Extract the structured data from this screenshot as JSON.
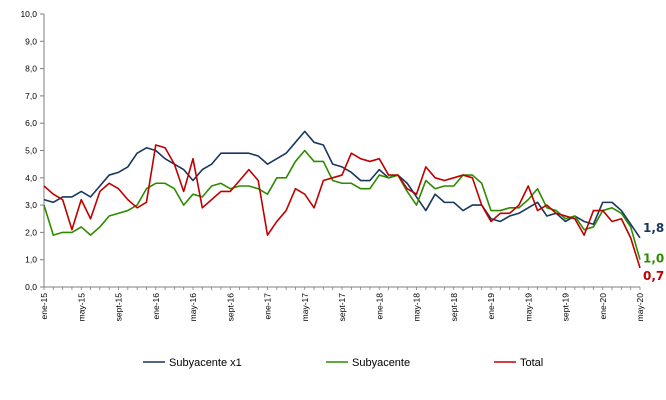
{
  "chart_data": {
    "type": "line",
    "title": "",
    "xlabel": "",
    "ylabel": "",
    "ylim": [
      0,
      10
    ],
    "y_ticks": [
      "0,0",
      "1,0",
      "2,0",
      "3,0",
      "4,0",
      "5,0",
      "6,0",
      "7,0",
      "8,0",
      "9,0",
      "10,0"
    ],
    "grid": false,
    "legend_position": "bottom",
    "x": [
      "ene-15",
      "feb-15",
      "mar-15",
      "abr-15",
      "may-15",
      "jun-15",
      "jul-15",
      "ago-15",
      "sept-15",
      "oct-15",
      "nov-15",
      "dic-15",
      "ene-16",
      "feb-16",
      "mar-16",
      "abr-16",
      "may-16",
      "jun-16",
      "jul-16",
      "ago-16",
      "sept-16",
      "oct-16",
      "nov-16",
      "dic-16",
      "ene-17",
      "feb-17",
      "mar-17",
      "abr-17",
      "may-17",
      "jun-17",
      "jul-17",
      "ago-17",
      "sept-17",
      "oct-17",
      "nov-17",
      "dic-17",
      "ene-18",
      "feb-18",
      "mar-18",
      "abr-18",
      "may-18",
      "jun-18",
      "jul-18",
      "ago-18",
      "sept-18",
      "oct-18",
      "nov-18",
      "dic-18",
      "ene-19",
      "feb-19",
      "mar-19",
      "abr-19",
      "may-19",
      "jun-19",
      "jul-19",
      "ago-19",
      "sept-19",
      "oct-19",
      "nov-19",
      "dic-19",
      "ene-20",
      "feb-20",
      "mar-20",
      "abr-20",
      "may-20"
    ],
    "x_tick_labels": [
      {
        "index": 0,
        "label": "ene-15"
      },
      {
        "index": 4,
        "label": "may-15"
      },
      {
        "index": 8,
        "label": "sept-15"
      },
      {
        "index": 12,
        "label": "ene-16"
      },
      {
        "index": 16,
        "label": "may-16"
      },
      {
        "index": 20,
        "label": "sept-16"
      },
      {
        "index": 24,
        "label": "ene-17"
      },
      {
        "index": 28,
        "label": "may-17"
      },
      {
        "index": 32,
        "label": "sept-17"
      },
      {
        "index": 36,
        "label": "ene-18"
      },
      {
        "index": 40,
        "label": "may-18"
      },
      {
        "index": 44,
        "label": "sept-18"
      },
      {
        "index": 48,
        "label": "ene-19"
      },
      {
        "index": 52,
        "label": "may-19"
      },
      {
        "index": 56,
        "label": "sept-19"
      },
      {
        "index": 60,
        "label": "ene-20"
      },
      {
        "index": 64,
        "label": "may-20"
      }
    ],
    "series": [
      {
        "name": "Subyacente x1",
        "color": "#17375E",
        "end_label": "1,8",
        "values": [
          3.2,
          3.1,
          3.3,
          3.3,
          3.5,
          3.3,
          3.7,
          4.1,
          4.2,
          4.4,
          4.9,
          5.1,
          5.0,
          4.7,
          4.5,
          4.3,
          3.9,
          4.3,
          4.5,
          4.9,
          4.9,
          4.9,
          4.9,
          4.8,
          4.5,
          4.7,
          4.9,
          5.3,
          5.7,
          5.3,
          5.2,
          4.5,
          4.4,
          4.2,
          3.9,
          3.9,
          4.3,
          4.0,
          4.1,
          3.8,
          3.3,
          2.8,
          3.4,
          3.1,
          3.1,
          2.8,
          3.0,
          3.0,
          2.5,
          2.4,
          2.6,
          2.7,
          2.9,
          3.1,
          2.6,
          2.7,
          2.4,
          2.6,
          2.4,
          2.3,
          3.1,
          3.1,
          2.8,
          2.3,
          1.8
        ]
      },
      {
        "name": "Subyacente",
        "color": "#2E8B00",
        "end_label": "1,0",
        "values": [
          3.0,
          1.9,
          2.0,
          2.0,
          2.2,
          1.9,
          2.2,
          2.6,
          2.7,
          2.8,
          3.0,
          3.6,
          3.8,
          3.8,
          3.6,
          3.0,
          3.4,
          3.3,
          3.7,
          3.8,
          3.6,
          3.7,
          3.7,
          3.6,
          3.4,
          4.0,
          4.0,
          4.6,
          5.0,
          4.6,
          4.6,
          3.9,
          3.8,
          3.8,
          3.6,
          3.6,
          4.1,
          4.0,
          4.1,
          3.5,
          3.0,
          3.9,
          3.6,
          3.7,
          3.7,
          4.1,
          4.1,
          3.8,
          2.8,
          2.8,
          2.9,
          2.9,
          3.2,
          3.6,
          2.9,
          2.8,
          2.5,
          2.6,
          2.1,
          2.2,
          2.8,
          2.9,
          2.7,
          2.2,
          1.0
        ]
      },
      {
        "name": "Total",
        "color": "#C00000",
        "end_label": "0,7",
        "values": [
          3.7,
          3.4,
          3.2,
          2.1,
          3.2,
          2.5,
          3.5,
          3.8,
          3.6,
          3.2,
          2.9,
          3.1,
          5.2,
          5.1,
          4.5,
          3.5,
          4.7,
          2.9,
          3.2,
          3.5,
          3.5,
          3.9,
          4.3,
          3.9,
          1.9,
          2.4,
          2.8,
          3.6,
          3.4,
          2.9,
          3.9,
          4.0,
          4.1,
          4.9,
          4.7,
          4.6,
          4.7,
          4.1,
          4.1,
          3.6,
          3.4,
          4.4,
          4.0,
          3.9,
          4.0,
          4.1,
          4.0,
          3.0,
          2.4,
          2.7,
          2.7,
          3.0,
          3.7,
          2.8,
          3.0,
          2.7,
          2.6,
          2.5,
          1.9,
          2.8,
          2.8,
          2.4,
          2.5,
          1.8,
          0.7
        ]
      }
    ]
  }
}
